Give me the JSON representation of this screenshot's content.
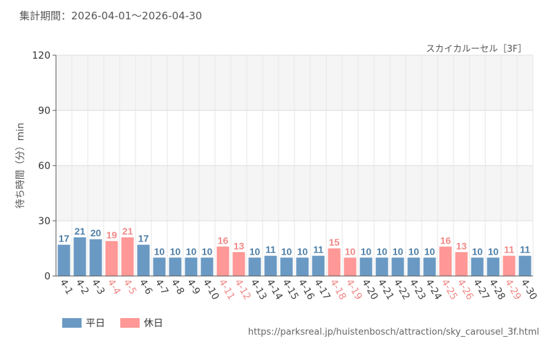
{
  "header": {
    "period_label": "集計期間：2026-04-01～2026-04-30"
  },
  "chart_title": "スカイカルーセル［3F］",
  "source_url": "https://parksreal.jp/huistenbosch/attraction/sky_carousel_3f.html",
  "colors": {
    "weekday": "#6a9ac4",
    "holiday": "#ff9896",
    "weekday_label": "#4f7fa8",
    "holiday_label": "#f08a88"
  },
  "chart_data": {
    "type": "bar",
    "title": "スカイカルーセル［3F］",
    "ylabel": "待ち時間（分）min",
    "xlabel": "",
    "ylim": [
      0,
      120
    ],
    "yticks": [
      0,
      30,
      60,
      90,
      120
    ],
    "grid": true,
    "legend_position": "bottom-left",
    "categories": [
      "4-1",
      "4-2",
      "4-3",
      "4-4",
      "4-5",
      "4-6",
      "4-7",
      "4-8",
      "4-9",
      "4-10",
      "4-11",
      "4-12",
      "4-13",
      "4-14",
      "4-15",
      "4-16",
      "4-17",
      "4-18",
      "4-19",
      "4-20",
      "4-21",
      "4-22",
      "4-23",
      "4-24",
      "4-25",
      "4-26",
      "4-27",
      "4-28",
      "4-29",
      "4-30"
    ],
    "values": [
      17,
      21,
      20,
      19,
      21,
      17,
      10,
      10,
      10,
      10,
      16,
      13,
      10,
      11,
      10,
      10,
      11,
      15,
      10,
      10,
      10,
      10,
      10,
      10,
      16,
      13,
      10,
      10,
      11,
      11
    ],
    "day_type": [
      "weekday",
      "weekday",
      "weekday",
      "holiday",
      "holiday",
      "weekday",
      "weekday",
      "weekday",
      "weekday",
      "weekday",
      "holiday",
      "holiday",
      "weekday",
      "weekday",
      "weekday",
      "weekday",
      "weekday",
      "holiday",
      "holiday",
      "weekday",
      "weekday",
      "weekday",
      "weekday",
      "weekday",
      "holiday",
      "holiday",
      "weekday",
      "weekday",
      "holiday",
      "weekday"
    ],
    "series": [
      {
        "name": "平日",
        "key": "weekday"
      },
      {
        "name": "休日",
        "key": "holiday"
      }
    ]
  }
}
